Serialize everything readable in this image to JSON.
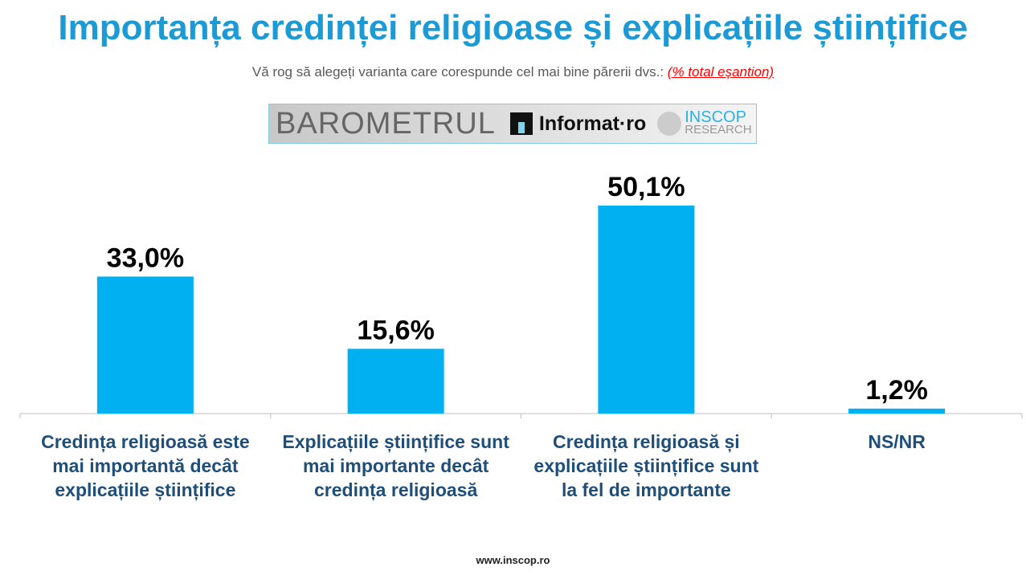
{
  "title": "Importanța credinței religioase și explicațiile științifice",
  "subtitle": "Vă rog să alegeți varianta care corespunde cel mai bine părerii dvs.:",
  "subtitle_note": "(% total eșantion)",
  "logo": {
    "barometrul": "BAROMETRUL",
    "informat": "Informat·ro",
    "inscop": "INSCOP",
    "research": "RESEARCH"
  },
  "footer": "www.inscop.ro",
  "colors": {
    "bar": "#00b0f0",
    "title": "#1b9ad6",
    "category": "#1f4e79"
  },
  "chart_data": {
    "type": "bar",
    "categories": [
      "Credința religioasă este mai importantă decât explicațiile științifice",
      "Explicațiile științifice sunt mai importante decât credința religioasă",
      "Credința religioasă și explicațiile științifice sunt la fel de importante",
      "NS/NR"
    ],
    "values": [
      33.0,
      15.6,
      50.1,
      1.2
    ],
    "data_labels": [
      "33,0%",
      "15,6%",
      "50,1%",
      "1,2%"
    ],
    "ylim": [
      0,
      55
    ],
    "grid": false
  }
}
